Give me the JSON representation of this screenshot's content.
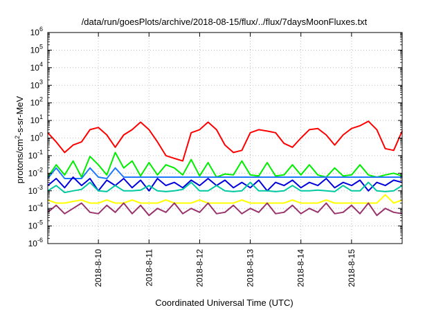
{
  "chart_data": {
    "type": "line",
    "title": "/data/run/goesPlots/archive/2018-08-15/flux/../flux/7daysMoonFluxes.txt",
    "xlabel": "Coordinated Universal Time (UTC)",
    "ylabel_parts": [
      "protons/cm",
      "2",
      "-s-sr-MeV"
    ],
    "x_range": [
      "2018-08-09 00:00",
      "2018-08-16 00:00"
    ],
    "ylim": [
      1e-06,
      1000000.0
    ],
    "y_scale": "log",
    "y_ticks": [
      {
        "base": "10",
        "exp": "-6",
        "value": 1e-06
      },
      {
        "base": "10",
        "exp": "-5",
        "value": 1e-05
      },
      {
        "base": "10",
        "exp": "-4",
        "value": 0.0001
      },
      {
        "base": "10",
        "exp": "-3",
        "value": 0.001
      },
      {
        "base": "10",
        "exp": "-2",
        "value": 0.01
      },
      {
        "base": "10",
        "exp": "-1",
        "value": 0.1
      },
      {
        "base": "10",
        "exp": "0",
        "value": 1
      },
      {
        "base": "10",
        "exp": "1",
        "value": 10
      },
      {
        "base": "10",
        "exp": "2",
        "value": 100
      },
      {
        "base": "10",
        "exp": "3",
        "value": 1000
      },
      {
        "base": "10",
        "exp": "4",
        "value": 10000
      },
      {
        "base": "10",
        "exp": "5",
        "value": 100000
      },
      {
        "base": "10",
        "exp": "6",
        "value": 1000000
      }
    ],
    "x_ticks": [
      {
        "label": "2018-8-10",
        "value": "2018-08-10 00:00"
      },
      {
        "label": "2018-8-11",
        "value": "2018-08-11 00:00"
      },
      {
        "label": "2018-8-12",
        "value": "2018-08-12 00:00"
      },
      {
        "label": "2018-8-13",
        "value": "2018-08-13 00:00"
      },
      {
        "label": "2018-8-14",
        "value": "2018-08-14 00:00"
      },
      {
        "label": "2018-8-15",
        "value": "2018-08-15 00:00"
      }
    ],
    "grid": true,
    "series": [
      {
        "color": "#ff0000",
        "x": [
          "2018-08-09 00:00",
          "2018-08-09 04:00",
          "2018-08-09 08:00",
          "2018-08-09 12:00",
          "2018-08-09 16:00",
          "2018-08-09 20:00",
          "2018-08-10 00:00",
          "2018-08-10 04:00",
          "2018-08-10 08:00",
          "2018-08-10 12:00",
          "2018-08-10 16:00",
          "2018-08-10 20:00",
          "2018-08-11 00:00",
          "2018-08-11 04:00",
          "2018-08-11 08:00",
          "2018-08-11 12:00",
          "2018-08-11 16:00",
          "2018-08-11 20:00",
          "2018-08-12 00:00",
          "2018-08-12 04:00",
          "2018-08-12 08:00",
          "2018-08-12 12:00",
          "2018-08-12 16:00",
          "2018-08-12 20:00",
          "2018-08-13 00:00",
          "2018-08-13 04:00",
          "2018-08-13 08:00",
          "2018-08-13 12:00",
          "2018-08-13 16:00",
          "2018-08-13 20:00",
          "2018-08-14 00:00",
          "2018-08-14 04:00",
          "2018-08-14 08:00",
          "2018-08-14 12:00",
          "2018-08-14 16:00",
          "2018-08-14 20:00",
          "2018-08-15 00:00",
          "2018-08-15 04:00",
          "2018-08-15 08:00",
          "2018-08-15 12:00",
          "2018-08-15 16:00",
          "2018-08-15 20:00",
          "2018-08-16 00:00"
        ],
        "values": [
          2.0,
          0.6,
          0.15,
          0.4,
          0.6,
          3.0,
          4.0,
          1.5,
          0.3,
          1.5,
          3.0,
          8.0,
          3.0,
          0.6,
          0.1,
          0.07,
          0.05,
          2.0,
          3.0,
          8.0,
          3.0,
          0.4,
          0.15,
          0.2,
          2.0,
          3.0,
          2.5,
          2.0,
          0.5,
          0.3,
          1.0,
          3.0,
          3.5,
          1.5,
          0.4,
          1.5,
          3.5,
          5.0,
          9.0,
          3.0,
          0.25,
          0.2,
          2.5
        ]
      },
      {
        "color": "#00ee00",
        "x": [
          "2018-08-09 00:00",
          "2018-08-09 04:00",
          "2018-08-09 08:00",
          "2018-08-09 12:00",
          "2018-08-09 16:00",
          "2018-08-09 20:00",
          "2018-08-10 00:00",
          "2018-08-10 04:00",
          "2018-08-10 08:00",
          "2018-08-10 12:00",
          "2018-08-10 16:00",
          "2018-08-10 20:00",
          "2018-08-11 00:00",
          "2018-08-11 04:00",
          "2018-08-11 08:00",
          "2018-08-11 12:00",
          "2018-08-11 16:00",
          "2018-08-11 20:00",
          "2018-08-12 00:00",
          "2018-08-12 04:00",
          "2018-08-12 08:00",
          "2018-08-12 12:00",
          "2018-08-12 16:00",
          "2018-08-12 20:00",
          "2018-08-13 00:00",
          "2018-08-13 04:00",
          "2018-08-13 08:00",
          "2018-08-13 12:00",
          "2018-08-13 16:00",
          "2018-08-13 20:00",
          "2018-08-14 00:00",
          "2018-08-14 04:00",
          "2018-08-14 08:00",
          "2018-08-14 12:00",
          "2018-08-14 16:00",
          "2018-08-14 20:00",
          "2018-08-15 00:00",
          "2018-08-15 04:00",
          "2018-08-15 08:00",
          "2018-08-15 12:00",
          "2018-08-15 16:00",
          "2018-08-15 20:00",
          "2018-08-16 00:00"
        ],
        "values": [
          0.006,
          0.03,
          0.008,
          0.05,
          0.006,
          0.09,
          0.03,
          0.008,
          0.15,
          0.02,
          0.05,
          0.007,
          0.04,
          0.008,
          0.03,
          0.02,
          0.008,
          0.06,
          0.007,
          0.04,
          0.006,
          0.009,
          0.008,
          0.05,
          0.008,
          0.007,
          0.04,
          0.007,
          0.008,
          0.03,
          0.008,
          0.03,
          0.008,
          0.006,
          0.02,
          0.007,
          0.008,
          0.03,
          0.008,
          0.006,
          0.008,
          0.01,
          0.007
        ]
      },
      {
        "color": "#1e78ff",
        "x": [
          "2018-08-09 00:00",
          "2018-08-09 04:00",
          "2018-08-09 08:00",
          "2018-08-09 12:00",
          "2018-08-09 16:00",
          "2018-08-09 20:00",
          "2018-08-10 00:00",
          "2018-08-10 04:00",
          "2018-08-10 08:00",
          "2018-08-10 12:00",
          "2018-08-10 16:00",
          "2018-08-10 20:00",
          "2018-08-11 00:00",
          "2018-08-11 04:00",
          "2018-08-11 08:00",
          "2018-08-11 12:00",
          "2018-08-11 16:00",
          "2018-08-11 20:00",
          "2018-08-12 00:00",
          "2018-08-12 04:00",
          "2018-08-12 08:00",
          "2018-08-12 12:00",
          "2018-08-12 16:00",
          "2018-08-12 20:00",
          "2018-08-13 00:00",
          "2018-08-13 04:00",
          "2018-08-13 08:00",
          "2018-08-13 12:00",
          "2018-08-13 16:00",
          "2018-08-13 20:00",
          "2018-08-14 00:00",
          "2018-08-14 04:00",
          "2018-08-14 08:00",
          "2018-08-14 12:00",
          "2018-08-14 16:00",
          "2018-08-14 20:00",
          "2018-08-15 00:00",
          "2018-08-15 04:00",
          "2018-08-15 08:00",
          "2018-08-15 12:00",
          "2018-08-15 16:00",
          "2018-08-15 20:00",
          "2018-08-16 00:00"
        ],
        "values": [
          0.005,
          0.02,
          0.005,
          0.005,
          0.005,
          0.02,
          0.006,
          0.005,
          0.02,
          0.006,
          0.006,
          0.006,
          0.006,
          0.006,
          0.006,
          0.006,
          0.006,
          0.006,
          0.006,
          0.006,
          0.006,
          0.006,
          0.006,
          0.006,
          0.006,
          0.006,
          0.006,
          0.006,
          0.006,
          0.006,
          0.006,
          0.006,
          0.006,
          0.006,
          0.006,
          0.006,
          0.006,
          0.006,
          0.006,
          0.006,
          0.006,
          0.006,
          0.006
        ]
      },
      {
        "color": "#0000dd",
        "x": [
          "2018-08-09 00:00",
          "2018-08-09 04:00",
          "2018-08-09 08:00",
          "2018-08-09 12:00",
          "2018-08-09 16:00",
          "2018-08-09 20:00",
          "2018-08-10 00:00",
          "2018-08-10 04:00",
          "2018-08-10 08:00",
          "2018-08-10 12:00",
          "2018-08-10 16:00",
          "2018-08-10 20:00",
          "2018-08-11 00:00",
          "2018-08-11 04:00",
          "2018-08-11 08:00",
          "2018-08-11 12:00",
          "2018-08-11 16:00",
          "2018-08-11 20:00",
          "2018-08-12 00:00",
          "2018-08-12 04:00",
          "2018-08-12 08:00",
          "2018-08-12 12:00",
          "2018-08-12 16:00",
          "2018-08-12 20:00",
          "2018-08-13 00:00",
          "2018-08-13 04:00",
          "2018-08-13 08:00",
          "2018-08-13 12:00",
          "2018-08-13 16:00",
          "2018-08-13 20:00",
          "2018-08-14 00:00",
          "2018-08-14 04:00",
          "2018-08-14 08:00",
          "2018-08-14 12:00",
          "2018-08-14 16:00",
          "2018-08-14 20:00",
          "2018-08-15 00:00",
          "2018-08-15 04:00",
          "2018-08-15 08:00",
          "2018-08-15 12:00",
          "2018-08-15 16:00",
          "2018-08-15 20:00",
          "2018-08-16 00:00"
        ],
        "values": [
          0.002,
          0.005,
          0.0015,
          0.006,
          0.002,
          0.005,
          0.001,
          0.004,
          0.002,
          0.005,
          0.0015,
          0.004,
          0.001,
          0.005,
          0.002,
          0.003,
          0.0015,
          0.004,
          0.002,
          0.005,
          0.002,
          0.004,
          0.0015,
          0.003,
          0.0015,
          0.004,
          0.001,
          0.003,
          0.002,
          0.004,
          0.0015,
          0.003,
          0.002,
          0.005,
          0.0015,
          0.003,
          0.002,
          0.004,
          0.001,
          0.003,
          0.002,
          0.004,
          0.003
        ]
      },
      {
        "color": "#00c8a0",
        "x": [
          "2018-08-09 00:00",
          "2018-08-09 04:00",
          "2018-08-09 08:00",
          "2018-08-09 12:00",
          "2018-08-09 16:00",
          "2018-08-09 20:00",
          "2018-08-10 00:00",
          "2018-08-10 04:00",
          "2018-08-10 08:00",
          "2018-08-10 12:00",
          "2018-08-10 16:00",
          "2018-08-10 20:00",
          "2018-08-11 00:00",
          "2018-08-11 04:00",
          "2018-08-11 08:00",
          "2018-08-11 12:00",
          "2018-08-11 16:00",
          "2018-08-11 20:00",
          "2018-08-12 00:00",
          "2018-08-12 04:00",
          "2018-08-12 08:00",
          "2018-08-12 12:00",
          "2018-08-12 16:00",
          "2018-08-12 20:00",
          "2018-08-13 00:00",
          "2018-08-13 04:00",
          "2018-08-13 08:00",
          "2018-08-13 12:00",
          "2018-08-13 16:00",
          "2018-08-13 20:00",
          "2018-08-14 00:00",
          "2018-08-14 04:00",
          "2018-08-14 08:00",
          "2018-08-14 12:00",
          "2018-08-14 16:00",
          "2018-08-14 20:00",
          "2018-08-15 00:00",
          "2018-08-15 04:00",
          "2018-08-15 08:00",
          "2018-08-15 12:00",
          "2018-08-15 16:00",
          "2018-08-15 20:00",
          "2018-08-16 00:00"
        ],
        "values": [
          0.001,
          0.002,
          0.0008,
          0.001,
          0.0012,
          0.003,
          0.001,
          0.0009,
          0.002,
          0.001,
          0.001,
          0.0011,
          0.002,
          0.001,
          0.0009,
          0.001,
          0.0012,
          0.003,
          0.001,
          0.001,
          0.002,
          0.001,
          0.0009,
          0.001,
          0.003,
          0.001,
          0.001,
          0.0009,
          0.001,
          0.002,
          0.001,
          0.001,
          0.0011,
          0.001,
          0.0009,
          0.002,
          0.001,
          0.001,
          0.003,
          0.001,
          0.0009,
          0.001,
          0.002
        ]
      },
      {
        "color": "#ffff00",
        "x": [
          "2018-08-09 00:00",
          "2018-08-09 04:00",
          "2018-08-09 08:00",
          "2018-08-09 12:00",
          "2018-08-09 16:00",
          "2018-08-09 20:00",
          "2018-08-10 00:00",
          "2018-08-10 04:00",
          "2018-08-10 08:00",
          "2018-08-10 12:00",
          "2018-08-10 16:00",
          "2018-08-10 20:00",
          "2018-08-11 00:00",
          "2018-08-11 04:00",
          "2018-08-11 08:00",
          "2018-08-11 12:00",
          "2018-08-11 16:00",
          "2018-08-11 20:00",
          "2018-08-12 00:00",
          "2018-08-12 04:00",
          "2018-08-12 08:00",
          "2018-08-12 12:00",
          "2018-08-12 16:00",
          "2018-08-12 20:00",
          "2018-08-13 00:00",
          "2018-08-13 04:00",
          "2018-08-13 08:00",
          "2018-08-13 12:00",
          "2018-08-13 16:00",
          "2018-08-13 20:00",
          "2018-08-14 00:00",
          "2018-08-14 04:00",
          "2018-08-14 08:00",
          "2018-08-14 12:00",
          "2018-08-14 16:00",
          "2018-08-14 20:00",
          "2018-08-15 00:00",
          "2018-08-15 04:00",
          "2018-08-15 08:00",
          "2018-08-15 12:00",
          "2018-08-15 16:00",
          "2018-08-15 20:00",
          "2018-08-16 00:00"
        ],
        "values": [
          0.0003,
          0.0002,
          0.0002,
          0.00025,
          0.0003,
          0.0002,
          0.0002,
          0.0003,
          0.0002,
          0.0002,
          0.0003,
          0.0002,
          0.0002,
          0.0002,
          0.0003,
          0.0002,
          0.0002,
          0.0002,
          0.0003,
          0.0002,
          0.0002,
          0.0002,
          0.0002,
          0.0003,
          0.0002,
          0.0002,
          0.0002,
          0.0002,
          0.0002,
          0.0003,
          0.0002,
          0.0002,
          0.0002,
          0.0003,
          0.0002,
          0.0002,
          0.0002,
          0.0002,
          0.0002,
          0.0002,
          0.0006,
          0.0002,
          0.0003
        ]
      },
      {
        "color": "#99336b",
        "x": [
          "2018-08-09 00:00",
          "2018-08-09 04:00",
          "2018-08-09 08:00",
          "2018-08-09 12:00",
          "2018-08-09 16:00",
          "2018-08-09 20:00",
          "2018-08-10 00:00",
          "2018-08-10 04:00",
          "2018-08-10 08:00",
          "2018-08-10 12:00",
          "2018-08-10 16:00",
          "2018-08-10 20:00",
          "2018-08-11 00:00",
          "2018-08-11 04:00",
          "2018-08-11 08:00",
          "2018-08-11 12:00",
          "2018-08-11 16:00",
          "2018-08-11 20:00",
          "2018-08-12 00:00",
          "2018-08-12 04:00",
          "2018-08-12 08:00",
          "2018-08-12 12:00",
          "2018-08-12 16:00",
          "2018-08-12 20:00",
          "2018-08-13 00:00",
          "2018-08-13 04:00",
          "2018-08-13 08:00",
          "2018-08-13 12:00",
          "2018-08-13 16:00",
          "2018-08-13 20:00",
          "2018-08-14 00:00",
          "2018-08-14 04:00",
          "2018-08-14 08:00",
          "2018-08-14 12:00",
          "2018-08-14 16:00",
          "2018-08-14 20:00",
          "2018-08-15 00:00",
          "2018-08-15 04:00",
          "2018-08-15 08:00",
          "2018-08-15 12:00",
          "2018-08-15 16:00",
          "2018-08-15 20:00",
          "2018-08-16 00:00"
        ],
        "values": [
          6e-05,
          0.00015,
          5e-05,
          0.0001,
          0.0002,
          6e-05,
          5e-05,
          0.00015,
          6e-05,
          0.0002,
          5e-05,
          0.00015,
          4e-05,
          0.0001,
          6e-05,
          0.0002,
          5e-05,
          0.0001,
          6e-05,
          0.0002,
          5e-05,
          6e-05,
          0.00015,
          5e-05,
          0.0001,
          6e-05,
          0.0002,
          5e-05,
          6e-05,
          0.00015,
          5e-05,
          0.0001,
          6e-05,
          0.0002,
          5e-05,
          6e-05,
          0.00015,
          5e-05,
          0.0002,
          4e-05,
          0.0001,
          6e-05,
          5e-05
        ]
      }
    ]
  }
}
